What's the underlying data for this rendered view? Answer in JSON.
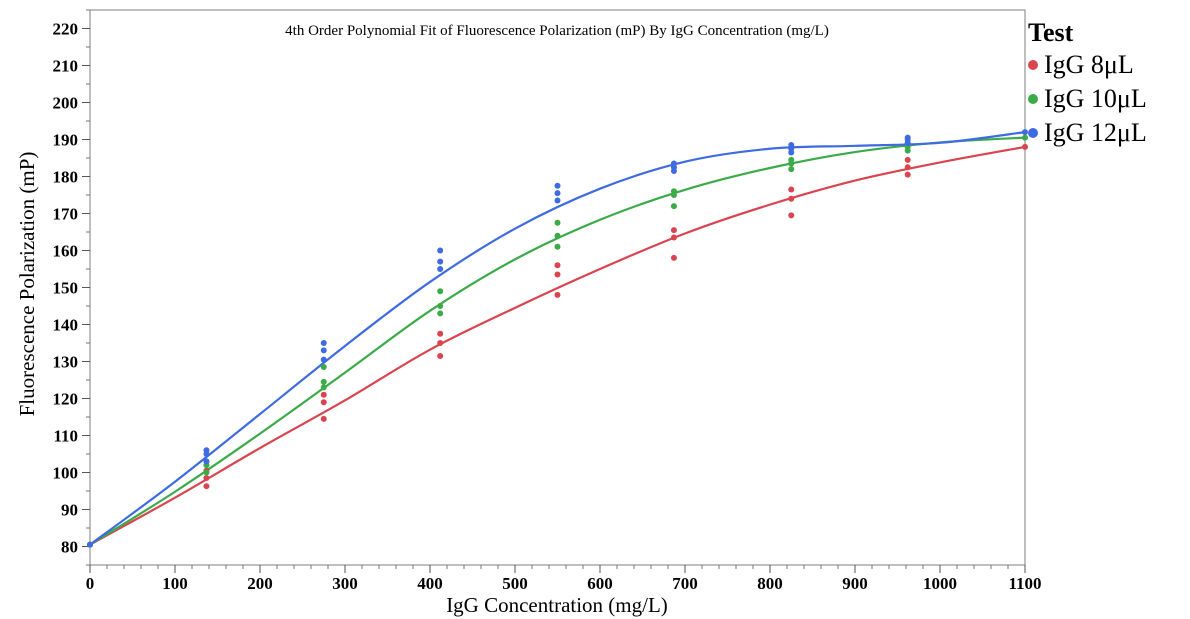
{
  "chart_data": {
    "type": "scatter",
    "title": "4th Order Polynomial Fit of Fluorescence Polarization (mP) By IgG Concentration (mg/L)",
    "xlabel": "IgG Concentration (mg/L)",
    "ylabel": "Fluorescence Polarization (mP)",
    "xlim": [
      0,
      1100
    ],
    "ylim": [
      75,
      225
    ],
    "x_ticks": [
      0,
      100,
      200,
      300,
      400,
      500,
      600,
      700,
      800,
      900,
      1000,
      1100
    ],
    "y_ticks": [
      80,
      90,
      100,
      110,
      120,
      130,
      140,
      150,
      160,
      170,
      180,
      190,
      200,
      210,
      220
    ],
    "grid": false,
    "legend_title": "Test",
    "legend_position": "right",
    "series": [
      {
        "name": "IgG 8μL",
        "color": "#d9444f",
        "points": [
          [
            0,
            80.5
          ],
          [
            137,
            96.3
          ],
          [
            137,
            98.5
          ],
          [
            137,
            100.5
          ],
          [
            275,
            114.5
          ],
          [
            275,
            119
          ],
          [
            275,
            121
          ],
          [
            412,
            131.5
          ],
          [
            412,
            135
          ],
          [
            412,
            137.5
          ],
          [
            550,
            148
          ],
          [
            550,
            153.5
          ],
          [
            550,
            156
          ],
          [
            687,
            158
          ],
          [
            687,
            163.5
          ],
          [
            687,
            165.5
          ],
          [
            825,
            169.5
          ],
          [
            825,
            174
          ],
          [
            825,
            176.5
          ],
          [
            962,
            180.5
          ],
          [
            962,
            182.5
          ],
          [
            962,
            184.5
          ],
          [
            1100,
            188
          ]
        ],
        "fit_x": [
          0,
          100,
          200,
          300,
          400,
          500,
          600,
          700,
          800,
          900,
          1000,
          1100
        ],
        "fit_y": [
          80.5,
          93.2,
          106.6,
          119.5,
          133.2,
          144.5,
          155,
          164.6,
          172.4,
          178.9,
          183.8,
          188
        ]
      },
      {
        "name": "IgG 10μL",
        "color": "#3aab48",
        "points": [
          [
            0,
            80.5
          ],
          [
            137,
            100
          ],
          [
            137,
            102
          ],
          [
            137,
            103
          ],
          [
            275,
            123
          ],
          [
            275,
            124.5
          ],
          [
            275,
            128.5
          ],
          [
            412,
            143
          ],
          [
            412,
            145
          ],
          [
            412,
            149
          ],
          [
            550,
            161
          ],
          [
            550,
            164
          ],
          [
            550,
            167.5
          ],
          [
            687,
            172
          ],
          [
            687,
            175
          ],
          [
            687,
            176
          ],
          [
            825,
            182
          ],
          [
            825,
            183.5
          ],
          [
            825,
            184.5
          ],
          [
            962,
            187
          ],
          [
            962,
            188
          ],
          [
            962,
            189
          ],
          [
            1100,
            190.5
          ]
        ],
        "fit_x": [
          0,
          100,
          200,
          300,
          400,
          500,
          600,
          700,
          800,
          900,
          1000,
          1100
        ],
        "fit_y": [
          80.5,
          94.8,
          110.5,
          127,
          143.7,
          157.6,
          168.3,
          176.4,
          182.3,
          186.6,
          189.2,
          190.5
        ]
      },
      {
        "name": "IgG 12μL",
        "color": "#3f6be0",
        "points": [
          [
            0,
            80.5
          ],
          [
            137,
            103
          ],
          [
            137,
            105
          ],
          [
            137,
            106
          ],
          [
            275,
            130.5
          ],
          [
            275,
            133
          ],
          [
            275,
            135
          ],
          [
            412,
            155
          ],
          [
            412,
            157
          ],
          [
            412,
            160
          ],
          [
            550,
            173.5
          ],
          [
            550,
            175.5
          ],
          [
            550,
            177.5
          ],
          [
            687,
            181.5
          ],
          [
            687,
            182.5
          ],
          [
            687,
            183.5
          ],
          [
            825,
            186.5
          ],
          [
            825,
            187.5
          ],
          [
            825,
            188.5
          ],
          [
            962,
            189
          ],
          [
            962,
            190
          ],
          [
            962,
            190.5
          ],
          [
            1100,
            192
          ]
        ],
        "fit_x": [
          0,
          100,
          200,
          300,
          400,
          500,
          600,
          700,
          800,
          900,
          1000,
          1100
        ],
        "fit_y": [
          80.5,
          97.5,
          115.8,
          134.2,
          151.5,
          165.9,
          176.7,
          184,
          187.5,
          188.3,
          189.1,
          192
        ]
      }
    ]
  }
}
